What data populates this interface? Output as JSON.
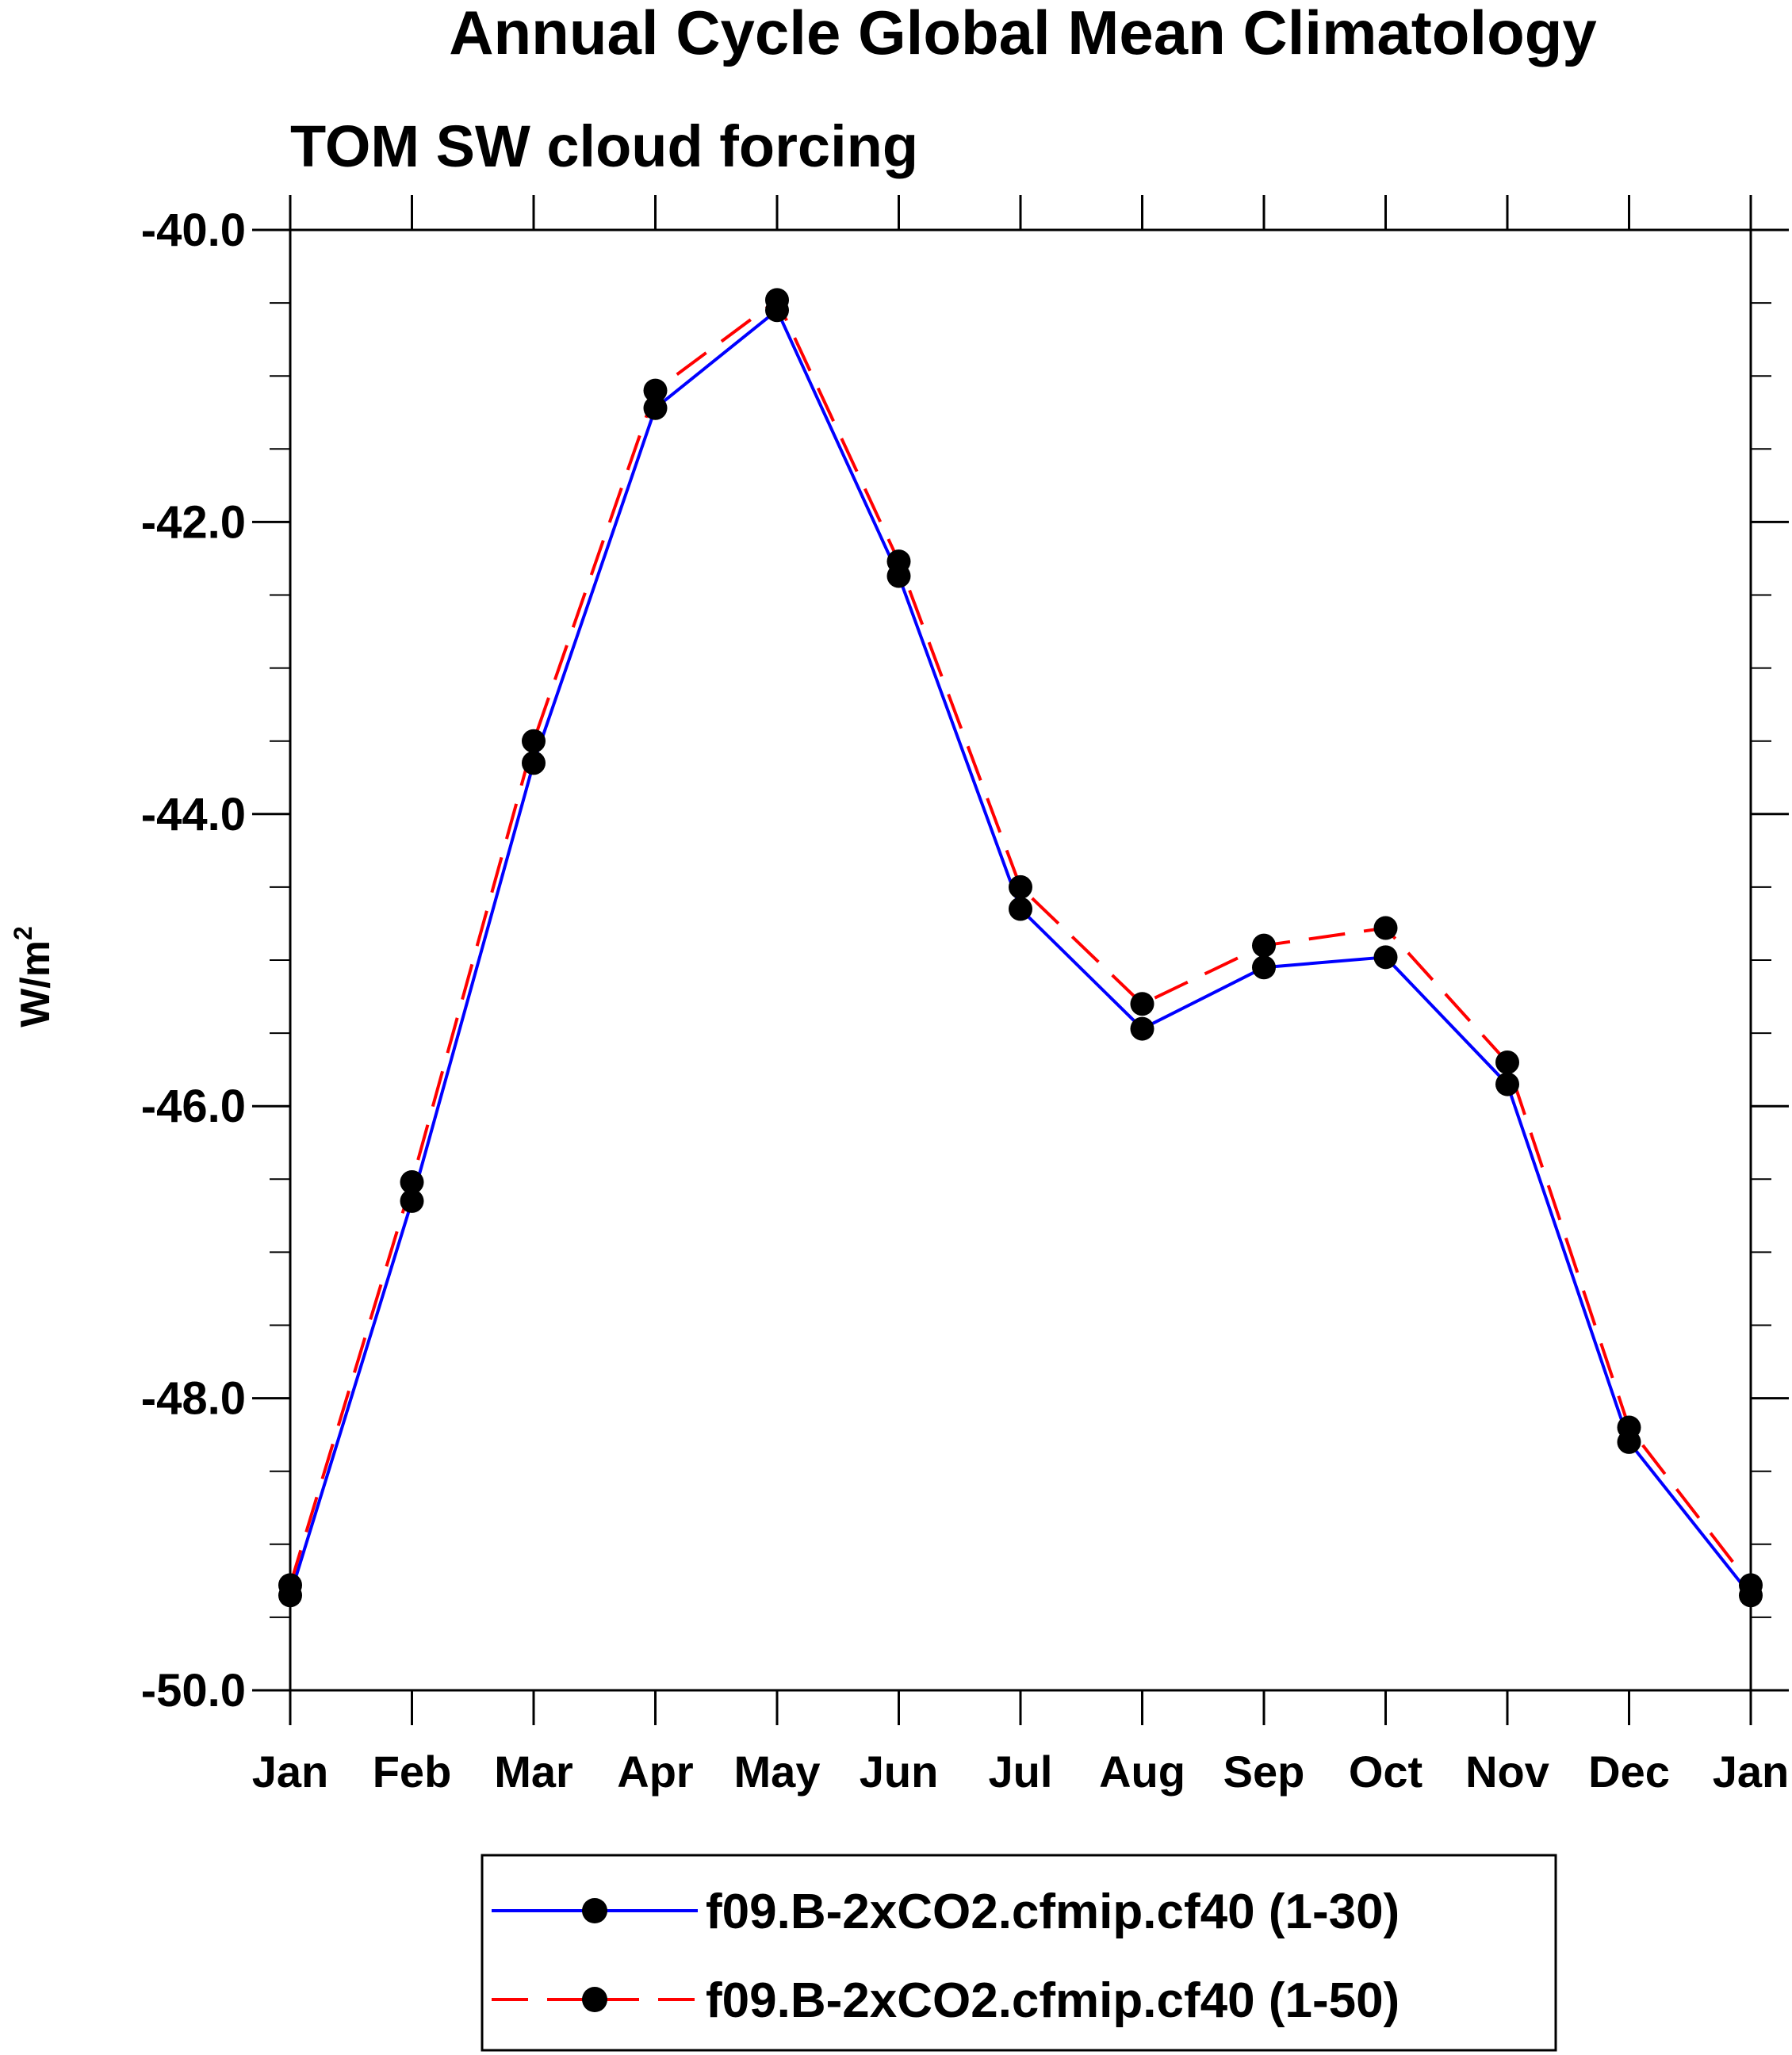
{
  "chart_data": {
    "type": "line",
    "title": "Annual Cycle Global Mean Climatology",
    "subtitle": "TOM SW cloud forcing",
    "xlabel": "",
    "ylabel": "W/m",
    "ylabel_superscript": "2",
    "categories": [
      "Jan",
      "Feb",
      "Mar",
      "Apr",
      "May",
      "Jun",
      "Jul",
      "Aug",
      "Sep",
      "Oct",
      "Nov",
      "Dec",
      "Jan"
    ],
    "ylim": [
      -50.0,
      -40.0
    ],
    "yticks": [
      -40.0,
      -42.0,
      -44.0,
      -46.0,
      -48.0,
      -50.0
    ],
    "ytick_labels": [
      "-40.0",
      "-42.0",
      "-44.0",
      "-46.0",
      "-48.0",
      "-50.0"
    ],
    "y_minor_step": 0.5,
    "grid": false,
    "legend_position": "bottom",
    "series": [
      {
        "name": "f09.B-2xCO2.cfmip.cf40 (1-30)",
        "color": "#0000ff",
        "line_style": "solid",
        "marker": "filled-circle",
        "values": [
          -49.35,
          -46.65,
          -43.65,
          -41.22,
          -40.55,
          -42.37,
          -44.65,
          -45.47,
          -45.05,
          -44.98,
          -45.85,
          -48.3,
          -49.35
        ]
      },
      {
        "name": "f09.B-2xCO2.cfmip.cf40 (1-50)",
        "color": "#ff0000",
        "line_style": "dashed",
        "marker": "filled-circle",
        "values": [
          -49.28,
          -46.52,
          -43.5,
          -41.1,
          -40.48,
          -42.27,
          -44.5,
          -45.3,
          -44.9,
          -44.78,
          -45.7,
          -48.2,
          -49.28
        ]
      }
    ]
  }
}
